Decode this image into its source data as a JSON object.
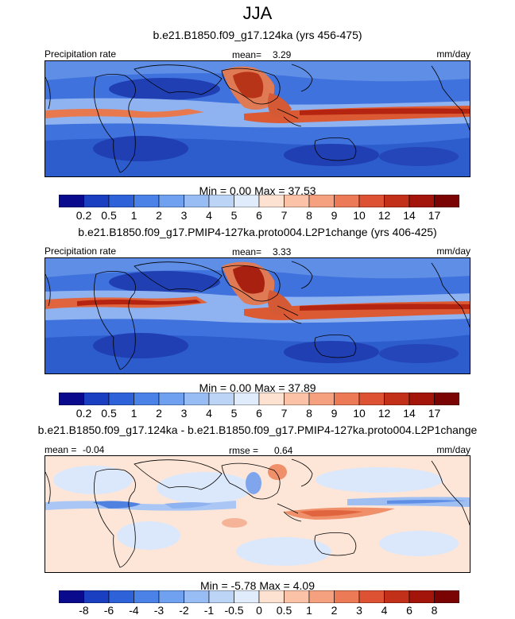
{
  "chart_data": {
    "type": "heatmap",
    "title": "JJA",
    "units": "mm/day",
    "variable": "Precipitation rate",
    "panels": [
      {
        "subtitle": "b.e21.B1850.f09_g17.124ka (yrs 456-475)",
        "left_label": "Precipitation rate",
        "stat_label": "mean=",
        "stat_value": "3.29",
        "units": "mm/day",
        "min_text": "Min =",
        "min": "0.00",
        "max_text": "Max =",
        "max": "37.53",
        "colorbar_labels": [
          "0.2",
          "0.5",
          "1",
          "2",
          "3",
          "4",
          "5",
          "6",
          "7",
          "8",
          "9",
          "10",
          "12",
          "14",
          "17"
        ],
        "colorbar_colors": [
          "#0a0a8c",
          "#1a3fc0",
          "#2d62d8",
          "#4a82e8",
          "#6fa1f0",
          "#98bcf4",
          "#bcd4f6",
          "#e0ecfb",
          "#fde2d2",
          "#fbc2a8",
          "#f5a07e",
          "#ec7a56",
          "#dc5233",
          "#c23019",
          "#a3150b",
          "#7a0303"
        ]
      },
      {
        "subtitle": "b.e21.B1850.f09_g17.PMIP4-127ka.proto004.L2P1change (yrs 406-425)",
        "left_label": "Precipitation rate",
        "stat_label": "mean=",
        "stat_value": "3.33",
        "units": "mm/day",
        "min_text": "Min =",
        "min": "0.00",
        "max_text": "Max =",
        "max": "37.89",
        "colorbar_labels": [
          "0.2",
          "0.5",
          "1",
          "2",
          "3",
          "4",
          "5",
          "6",
          "7",
          "8",
          "9",
          "10",
          "12",
          "14",
          "17"
        ],
        "colorbar_colors": [
          "#0a0a8c",
          "#1a3fc0",
          "#2d62d8",
          "#4a82e8",
          "#6fa1f0",
          "#98bcf4",
          "#bcd4f6",
          "#e0ecfb",
          "#fde2d2",
          "#fbc2a8",
          "#f5a07e",
          "#ec7a56",
          "#dc5233",
          "#c23019",
          "#a3150b",
          "#7a0303"
        ]
      },
      {
        "subtitle": "b.e21.B1850.f09_g17.124ka - b.e21.B1850.f09_g17.PMIP4-127ka.proto004.L2P1change",
        "left_label": "mean =",
        "left_value": "-0.04",
        "stat_label": "rmse =",
        "stat_value": "0.64",
        "units": "mm/day",
        "min_text": "Min =",
        "min": "-5.78",
        "max_text": "Max =",
        "max": "4.09",
        "colorbar_labels": [
          "-8",
          "-6",
          "-4",
          "-3",
          "-2",
          "-1",
          "-0.5",
          "0",
          "0.5",
          "1",
          "2",
          "3",
          "4",
          "6",
          "8"
        ],
        "colorbar_colors": [
          "#0a0a8c",
          "#1a3fc0",
          "#2d62d8",
          "#4a82e8",
          "#6fa1f0",
          "#98bcf4",
          "#bcd4f6",
          "#e0ecfb",
          "#fde2d2",
          "#fbc2a8",
          "#f5a07e",
          "#ec7a56",
          "#dc5233",
          "#c23019",
          "#a3150b",
          "#7a0303"
        ]
      }
    ]
  }
}
